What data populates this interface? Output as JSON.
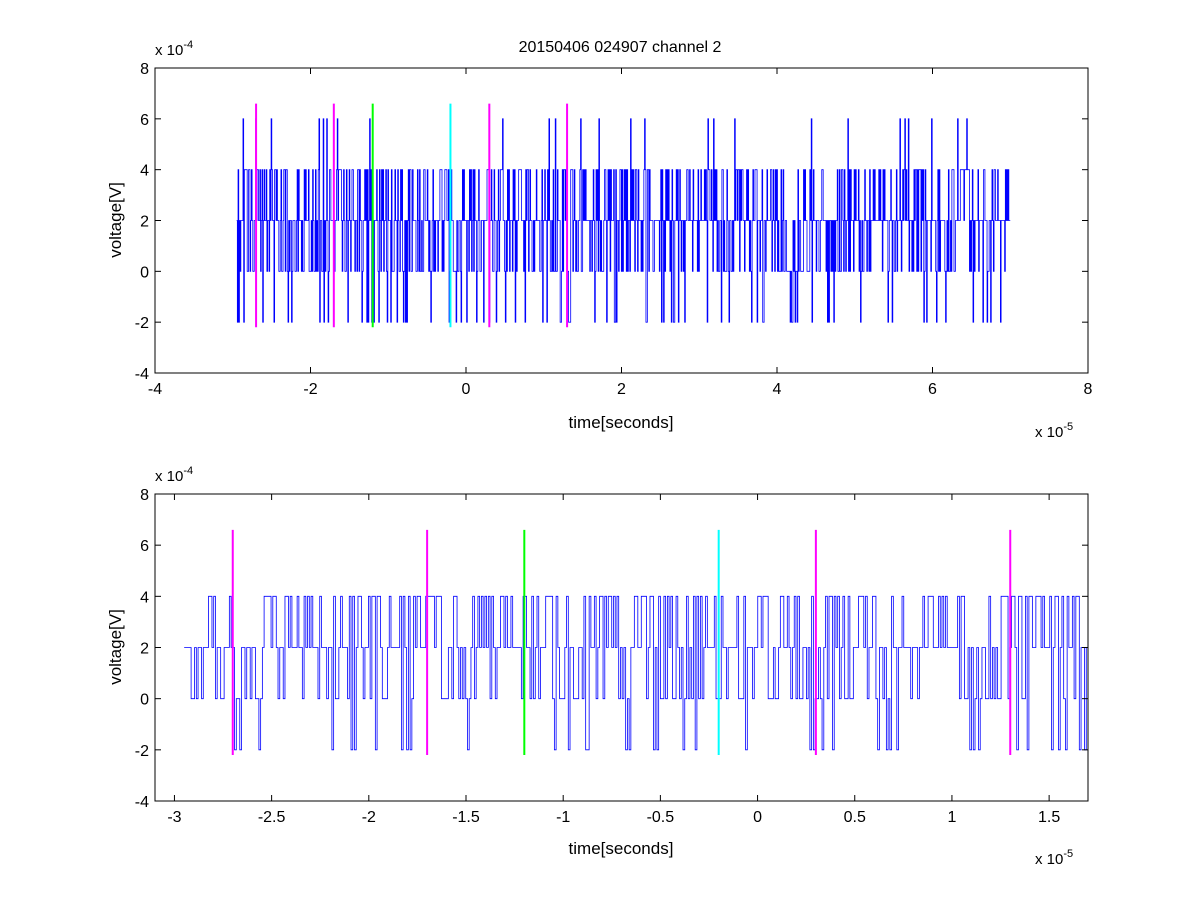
{
  "figure": {
    "title": "20150406 024907 channel 2"
  },
  "chart_data": [
    {
      "type": "line",
      "title": "20150406 024907 channel 2",
      "xlabel": "time[seconds]",
      "ylabel": "voltage[V]",
      "xlim": [
        -4e-05,
        8e-05
      ],
      "ylim": [
        -0.0004,
        0.0008
      ],
      "x_exponent_label": "x 10",
      "x_exponent": "-5",
      "y_exponent_label": "x 10",
      "y_exponent": "-4",
      "x_ticks": [
        -4,
        -2,
        0,
        2,
        4,
        6,
        8
      ],
      "x_tick_labels": [
        "-4",
        "-2",
        "0",
        "2",
        "4",
        "6",
        "8"
      ],
      "y_ticks": [
        -4,
        -2,
        0,
        2,
        4,
        6,
        8
      ],
      "y_tick_labels": [
        "-4",
        "-2",
        "0",
        "2",
        "4",
        "6",
        "8"
      ],
      "grid": false,
      "trace": {
        "color": "#0000ff",
        "x_start": -2.95e-05,
        "x_end": 7e-05,
        "levels": [
          -0.0002,
          0,
          0.0002,
          0.0004,
          0.0006
        ],
        "peak_max": 0.0006,
        "trough_min": -0.0002
      },
      "markers": [
        {
          "x": -2.7e-05,
          "color": "#ff00ff",
          "ymin": -0.00022,
          "ymax": 0.00066
        },
        {
          "x": -1.7e-05,
          "color": "#ff00ff",
          "ymin": -0.00022,
          "ymax": 0.00066
        },
        {
          "x": -1.2e-05,
          "color": "#00ff00",
          "ymin": -0.00022,
          "ymax": 0.00066
        },
        {
          "x": -2e-06,
          "color": "#00ffff",
          "ymin": -0.00022,
          "ymax": 0.00066
        },
        {
          "x": 3e-06,
          "color": "#ff00ff",
          "ymin": -0.00022,
          "ymax": 0.00066
        },
        {
          "x": 1.3e-05,
          "color": "#ff00ff",
          "ymin": -0.00022,
          "ymax": 0.00066
        }
      ]
    },
    {
      "type": "line",
      "title": "",
      "xlabel": "time[seconds]",
      "ylabel": "voltage[V]",
      "xlim": [
        -3.1e-05,
        1.7e-05
      ],
      "ylim": [
        -0.0004,
        0.0008
      ],
      "x_exponent_label": "x 10",
      "x_exponent": "-5",
      "y_exponent_label": "x 10",
      "y_exponent": "-4",
      "x_ticks": [
        -3,
        -2.5,
        -2,
        -1.5,
        -1,
        -0.5,
        0,
        0.5,
        1,
        1.5
      ],
      "x_tick_labels": [
        "-3",
        "-2.5",
        "-2",
        "-1.5",
        "-1",
        "-0.5",
        "0",
        "0.5",
        "1",
        "1.5"
      ],
      "y_ticks": [
        -4,
        -2,
        0,
        2,
        4,
        6,
        8
      ],
      "y_tick_labels": [
        "-4",
        "-2",
        "0",
        "2",
        "4",
        "6",
        "8"
      ],
      "grid": false,
      "trace": {
        "color": "#0000ff",
        "x_start": -2.95e-05,
        "x_end": 1.7e-05,
        "levels": [
          -0.0002,
          0,
          0.0002,
          0.0004
        ],
        "peak_max": 0.0004,
        "trough_min": -0.0002
      },
      "markers": [
        {
          "x": -2.7e-05,
          "color": "#ff00ff",
          "ymin": -0.00022,
          "ymax": 0.00066
        },
        {
          "x": -1.7e-05,
          "color": "#ff00ff",
          "ymin": -0.00022,
          "ymax": 0.00066
        },
        {
          "x": -1.2e-05,
          "color": "#00ff00",
          "ymin": -0.00022,
          "ymax": 0.00066
        },
        {
          "x": -2e-06,
          "color": "#00ffff",
          "ymin": -0.00022,
          "ymax": 0.00066
        },
        {
          "x": 3e-06,
          "color": "#ff00ff",
          "ymin": -0.00022,
          "ymax": 0.00066
        },
        {
          "x": 1.3e-05,
          "color": "#ff00ff",
          "ymin": -0.00022,
          "ymax": 0.00066
        }
      ]
    }
  ]
}
